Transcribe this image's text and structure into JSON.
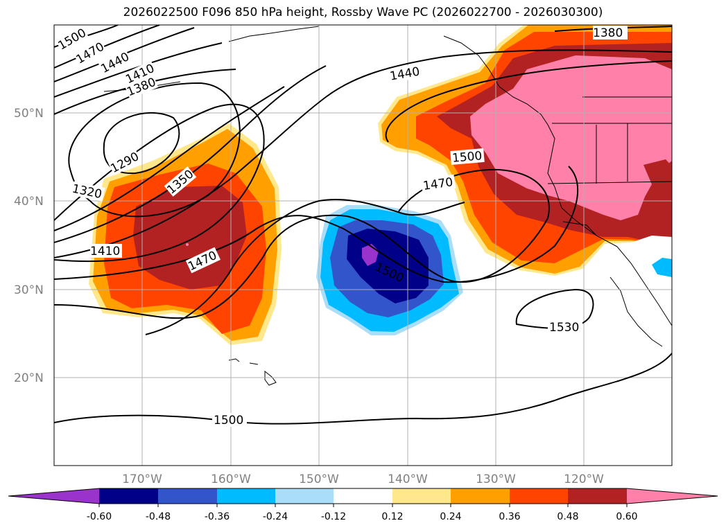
{
  "title": "2026022500 F096 850 hPa height, Rossby Wave PC (2026022700 - 2026030300)",
  "lat_labels": [
    "50°N",
    "40°N",
    "30°N",
    "20°N"
  ],
  "lon_labels": [
    "170°W",
    "160°W",
    "150°W",
    "140°W",
    "130°W",
    "120°W"
  ],
  "contour_labels": [
    "1500",
    "1470",
    "1440",
    "1410",
    "1380",
    "1290",
    "1350",
    "1320",
    "1410",
    "1470",
    "1440",
    "1380",
    "1500",
    "1470",
    "1500",
    "1530",
    "1500"
  ],
  "colorbar": {
    "ticks": [
      "-0.60",
      "-0.48",
      "-0.36",
      "-0.24",
      "-0.12",
      "0.12",
      "0.24",
      "0.36",
      "0.48",
      "0.60"
    ],
    "colors": [
      "#9933cc",
      "#000088",
      "#3355cc",
      "#00bbff",
      "#aaddf7",
      "#ffffff",
      "#ffe88c",
      "#ffa000",
      "#ff4400",
      "#b22222",
      "#ff80a8"
    ]
  },
  "colors": {
    "pos1": "#ffe88c",
    "pos2": "#ffa000",
    "pos3": "#ff4400",
    "pos4": "#b22222",
    "pos5": "#ff80a8",
    "neg1": "#aaddf7",
    "neg2": "#00bbff",
    "neg3": "#3355cc",
    "neg4": "#000088",
    "neg5": "#9933cc"
  }
}
